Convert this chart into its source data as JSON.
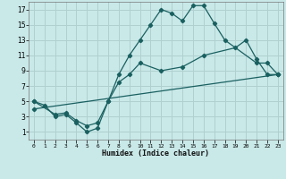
{
  "xlabel": "Humidex (Indice chaleur)",
  "bg_color": "#c9e8e8",
  "grid_color": "#b0d0d0",
  "line_color": "#1a6060",
  "xlim": [
    -0.5,
    23.5
  ],
  "ylim": [
    0,
    18
  ],
  "xticks": [
    0,
    1,
    2,
    3,
    4,
    5,
    6,
    7,
    8,
    9,
    10,
    11,
    12,
    13,
    14,
    15,
    16,
    17,
    18,
    19,
    20,
    21,
    22,
    23
  ],
  "yticks": [
    1,
    3,
    5,
    7,
    9,
    11,
    13,
    15,
    17
  ],
  "line1_x": [
    0,
    1,
    2,
    3,
    4,
    5,
    6,
    7,
    8,
    9,
    10,
    11,
    12,
    13,
    14,
    15,
    16,
    17,
    18,
    21,
    22,
    23
  ],
  "line1_y": [
    5,
    4.5,
    3,
    3.3,
    2.2,
    1,
    1.5,
    5,
    8.5,
    11,
    13,
    15,
    17,
    16.5,
    15.5,
    17.5,
    17.5,
    15.2,
    13,
    10,
    10,
    8.5
  ],
  "line2_x": [
    0,
    2,
    3,
    4,
    5,
    6,
    7,
    8,
    9,
    10,
    12,
    14,
    16,
    19,
    20,
    21,
    22,
    23
  ],
  "line2_y": [
    5,
    3.3,
    3.5,
    2.5,
    1.8,
    2.2,
    5,
    7.5,
    8.5,
    10,
    9,
    9.5,
    11,
    12,
    13,
    10.5,
    8.5,
    8.5
  ],
  "line3_x": [
    0,
    23
  ],
  "line3_y": [
    4,
    8.5
  ]
}
